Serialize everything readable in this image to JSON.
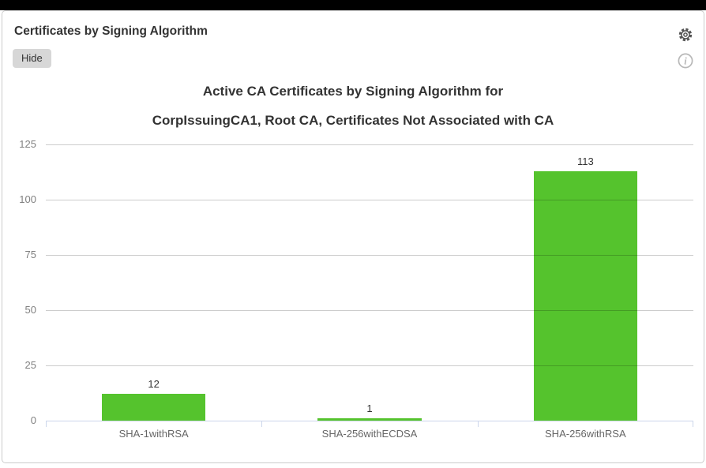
{
  "window": {
    "top_bar_color": "#000000"
  },
  "panel": {
    "title": "Certificates by Signing Algorithm",
    "hide_button_label": "Hide",
    "icons": {
      "settings": "gear-icon",
      "info": "info-circle-icon"
    }
  },
  "chart_data": {
    "type": "bar",
    "title_line1": "Active CA Certificates by Signing Algorithm for",
    "title_line2": "CorpIssuingCA1, Root CA, Certificates Not Associated with CA",
    "categories": [
      "SHA-1withRSA",
      "SHA-256withECDSA",
      "SHA-256withRSA"
    ],
    "values": [
      12,
      1,
      113
    ],
    "y_ticks": [
      0,
      25,
      50,
      75,
      100,
      125
    ],
    "ylim": [
      0,
      125
    ],
    "xlabel": "",
    "ylabel": "",
    "bar_color": "#55c32d",
    "value_label_color": "#333333",
    "axis_line_color": "#ccd6eb",
    "grid": true,
    "gridlines_over_bars": true,
    "legend": "none"
  }
}
